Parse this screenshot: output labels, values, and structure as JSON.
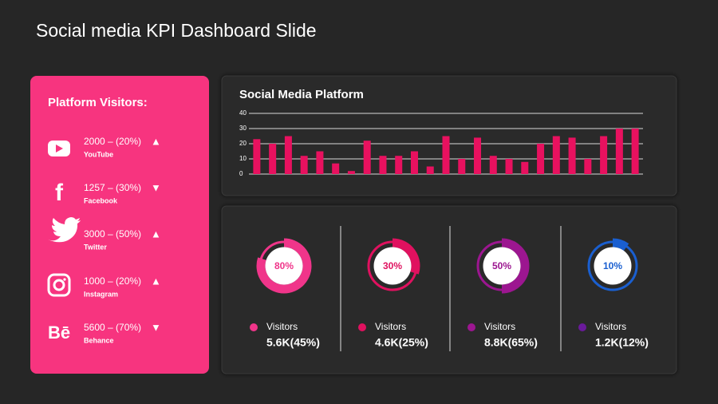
{
  "title": "Social media KPI Dashboard Slide",
  "platforms": {
    "heading": "Platform Visitors:",
    "items": [
      {
        "value": "2000 – (20%)",
        "name": "YouTube",
        "arrow": "▲"
      },
      {
        "value": "1257 – (30%)",
        "name": "Facebook",
        "arrow": "▼",
        "icon": "f"
      },
      {
        "value": "3000 – (50%)",
        "name": "Twitter",
        "arrow": "▲"
      },
      {
        "value": "1000 – (20%)",
        "name": "Instagram",
        "arrow": "▲"
      },
      {
        "value": "5600 – (70%)",
        "name": "Behance",
        "arrow": "▼",
        "icon": "Bē"
      }
    ]
  },
  "chart_data": [
    {
      "type": "bar",
      "title": "Social Media Platform",
      "categories": [
        null,
        null,
        null,
        null,
        null,
        null,
        null,
        null,
        null,
        null,
        null,
        null,
        null,
        null,
        null,
        null,
        null,
        null,
        null,
        null,
        null,
        null,
        null,
        null,
        null
      ],
      "values": [
        23,
        20,
        25,
        12,
        15,
        7,
        2,
        22,
        12,
        12,
        15,
        5,
        25,
        10,
        24,
        12,
        10,
        8,
        20,
        25,
        24,
        10,
        25,
        30,
        30
      ],
      "color": "#e8115f",
      "ylim": [
        0,
        40
      ],
      "yticks": [
        0,
        10,
        20,
        30,
        40
      ],
      "grid": true
    },
    {
      "type": "donut",
      "values": [
        80
      ],
      "value_labels": [
        "80%"
      ],
      "color": "#f0358a",
      "legend": {
        "label": "Visitors",
        "value": "5.6K(45%)",
        "color": "#f0358a"
      }
    },
    {
      "type": "donut",
      "values": [
        30
      ],
      "value_labels": [
        "30%"
      ],
      "color": "#e0115f",
      "legend": {
        "label": "Visitors",
        "value": "4.6K(25%)",
        "color": "#e0115f"
      }
    },
    {
      "type": "donut",
      "values": [
        50
      ],
      "value_labels": [
        "50%"
      ],
      "color": "#9c1690",
      "legend": {
        "label": "Visitors",
        "value": "8.8K(65%)",
        "color": "#9c1690"
      }
    },
    {
      "type": "donut",
      "values": [
        10
      ],
      "value_labels": [
        "10%"
      ],
      "color": "#1a5fd0",
      "legend": {
        "label": "Visitors",
        "value": "1.2K(12%)",
        "color": "#6a1a9a"
      }
    }
  ]
}
